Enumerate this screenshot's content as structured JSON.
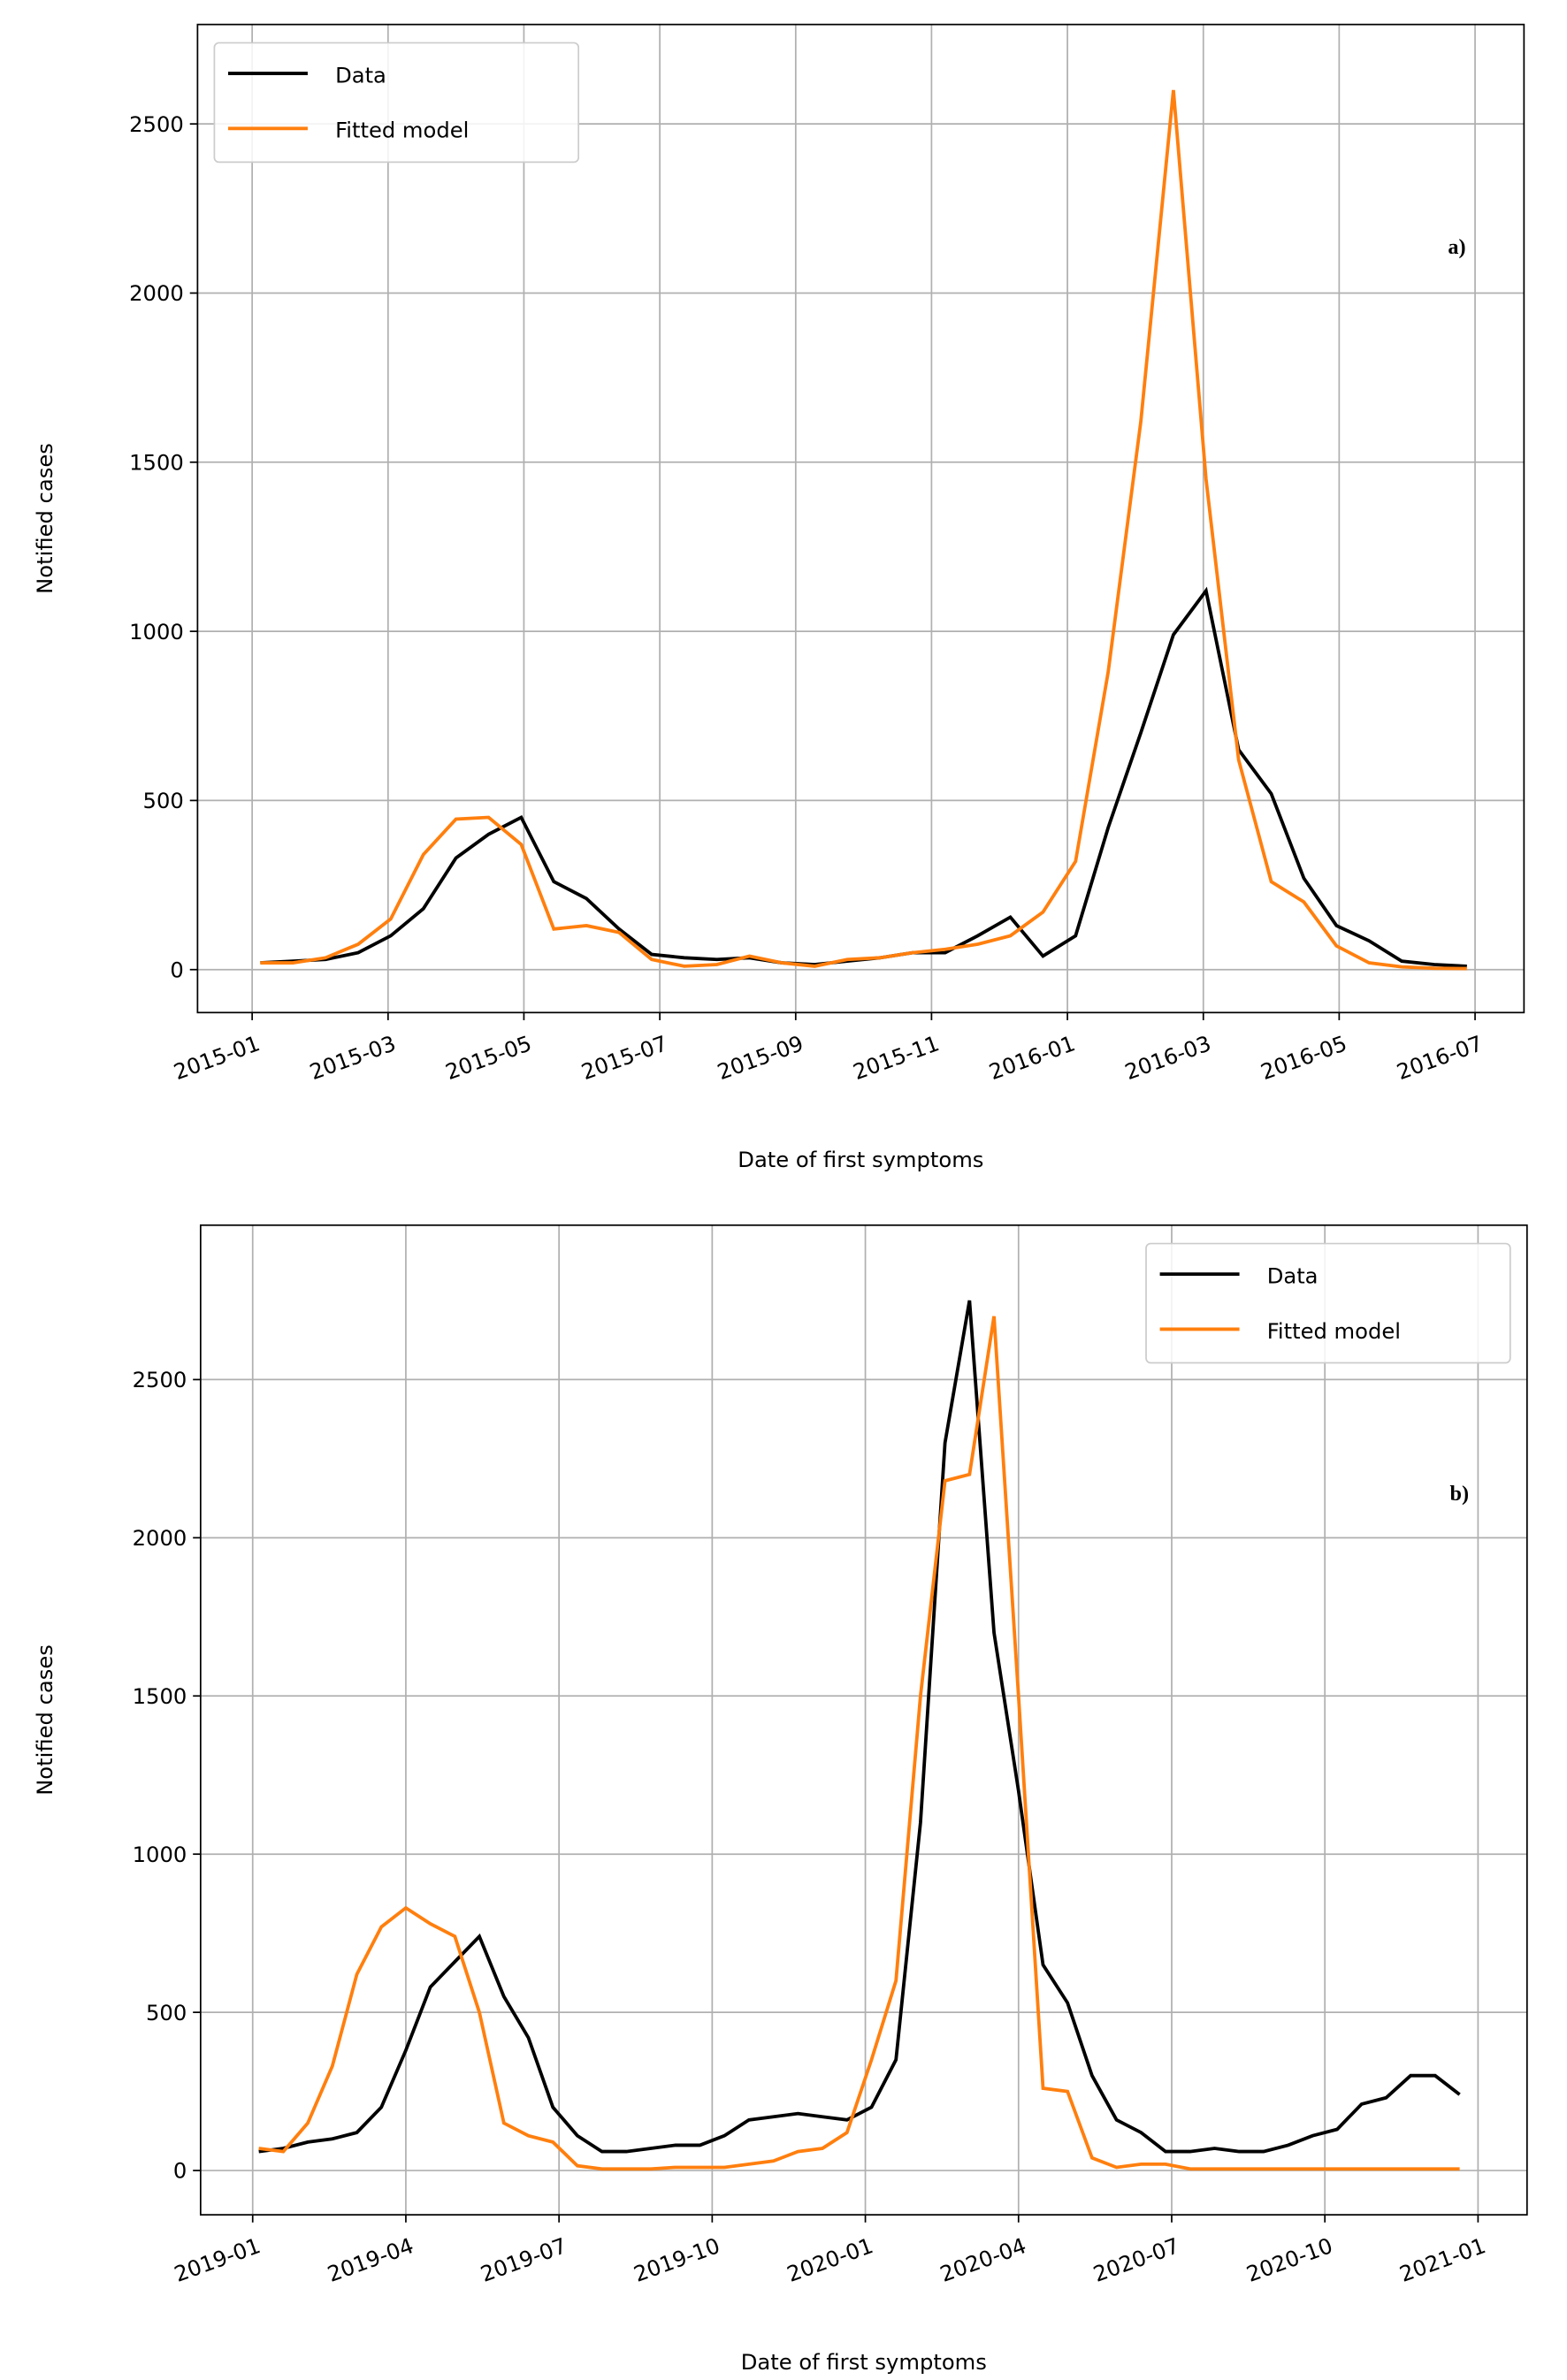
{
  "chart_data": [
    {
      "type": "line",
      "annotation": "a)",
      "xlabel": "Date of first symptoms",
      "ylabel": "Notified cases",
      "grid": true,
      "legend": "upper left",
      "xlim": [
        2014.933,
        2016.56
      ],
      "ylim": [
        -127,
        2794
      ],
      "xticks": [
        {
          "value": 2015.0,
          "label": "2015-01"
        },
        {
          "value": 2015.1667,
          "label": "2015-03"
        },
        {
          "value": 2015.3333,
          "label": "2015-05"
        },
        {
          "value": 2015.5,
          "label": "2015-07"
        },
        {
          "value": 2015.6667,
          "label": "2015-09"
        },
        {
          "value": 2015.8333,
          "label": "2015-11"
        },
        {
          "value": 2016.0,
          "label": "2016-01"
        },
        {
          "value": 2016.1667,
          "label": "2016-03"
        },
        {
          "value": 2016.3333,
          "label": "2016-05"
        },
        {
          "value": 2016.5,
          "label": "2016-07"
        }
      ],
      "yticks": [
        0,
        500,
        1000,
        1500,
        2000,
        2500
      ],
      "x": [
        2015.01,
        2015.05,
        2015.09,
        2015.13,
        2015.17,
        2015.21,
        2015.25,
        2015.29,
        2015.33,
        2015.37,
        2015.41,
        2015.45,
        2015.49,
        2015.53,
        2015.57,
        2015.61,
        2015.65,
        2015.69,
        2015.73,
        2015.77,
        2015.81,
        2015.85,
        2015.89,
        2015.93,
        2015.97,
        2016.01,
        2016.05,
        2016.09,
        2016.13,
        2016.17,
        2016.21,
        2016.25,
        2016.29,
        2016.33,
        2016.37,
        2016.41,
        2016.45,
        2016.49
      ],
      "series": [
        {
          "name": "Data",
          "color": "#000000",
          "values": [
            20,
            25,
            30,
            50,
            100,
            180,
            330,
            400,
            450,
            260,
            210,
            120,
            45,
            35,
            30,
            35,
            20,
            15,
            25,
            35,
            50,
            50,
            100,
            155,
            40,
            100,
            420,
            700,
            990,
            1120,
            650,
            520,
            270,
            130,
            85,
            25,
            15,
            10
          ]
        },
        {
          "name": "Fitted model",
          "color": "#ff7f0e",
          "values": [
            20,
            20,
            35,
            75,
            150,
            340,
            445,
            450,
            370,
            120,
            130,
            110,
            30,
            10,
            15,
            40,
            20,
            10,
            30,
            35,
            50,
            60,
            75,
            100,
            170,
            320,
            880,
            1620,
            2600,
            1450,
            620,
            260,
            200,
            70,
            20,
            8,
            4,
            3
          ]
        }
      ]
    },
    {
      "type": "line",
      "annotation": "b)",
      "xlabel": "Date of first symptoms",
      "ylabel": "Notified cases",
      "grid": true,
      "legend": "upper right",
      "xlim": [
        2018.915,
        2021.08
      ],
      "ylim": [
        -140,
        2988
      ],
      "xticks": [
        {
          "value": 2019.0,
          "label": "2019-01"
        },
        {
          "value": 2019.25,
          "label": "2019-04"
        },
        {
          "value": 2019.5,
          "label": "2019-07"
        },
        {
          "value": 2019.75,
          "label": "2019-10"
        },
        {
          "value": 2020.0,
          "label": "2020-01"
        },
        {
          "value": 2020.25,
          "label": "2020-04"
        },
        {
          "value": 2020.5,
          "label": "2020-07"
        },
        {
          "value": 2020.75,
          "label": "2020-10"
        },
        {
          "value": 2021.0,
          "label": "2021-01"
        }
      ],
      "yticks": [
        0,
        500,
        1000,
        1500,
        2000,
        2500
      ],
      "x": [
        2019.01,
        2019.05,
        2019.09,
        2019.13,
        2019.17,
        2019.21,
        2019.25,
        2019.29,
        2019.33,
        2019.37,
        2019.41,
        2019.45,
        2019.49,
        2019.53,
        2019.57,
        2019.61,
        2019.65,
        2019.69,
        2019.73,
        2019.77,
        2019.81,
        2019.85,
        2019.89,
        2019.93,
        2019.97,
        2020.01,
        2020.05,
        2020.09,
        2020.13,
        2020.17,
        2020.21,
        2020.25,
        2020.29,
        2020.33,
        2020.37,
        2020.41,
        2020.45,
        2020.49,
        2020.53,
        2020.57,
        2020.61,
        2020.65,
        2020.69,
        2020.73,
        2020.77,
        2020.81,
        2020.85,
        2020.89,
        2020.93,
        2020.97
      ],
      "series": [
        {
          "name": "Data",
          "color": "#000000",
          "values": [
            60,
            70,
            90,
            100,
            120,
            200,
            380,
            580,
            660,
            740,
            550,
            420,
            200,
            110,
            60,
            60,
            70,
            80,
            80,
            110,
            160,
            170,
            180,
            170,
            160,
            200,
            350,
            1100,
            2300,
            2750,
            1700,
            1200,
            650,
            530,
            300,
            160,
            120,
            60,
            60,
            70,
            60,
            60,
            80,
            110,
            130,
            210,
            230,
            300,
            300,
            240
          ]
        },
        {
          "name": "Fitted model",
          "color": "#ff7f0e",
          "values": [
            70,
            60,
            150,
            330,
            620,
            770,
            830,
            780,
            740,
            500,
            150,
            110,
            90,
            15,
            5,
            5,
            5,
            10,
            10,
            10,
            20,
            30,
            60,
            70,
            120,
            350,
            600,
            1500,
            2180,
            2200,
            2700,
            1500,
            260,
            250,
            40,
            10,
            20,
            20,
            5,
            5,
            5,
            5,
            5,
            5,
            5,
            5,
            5,
            5,
            5,
            5
          ]
        }
      ]
    }
  ]
}
